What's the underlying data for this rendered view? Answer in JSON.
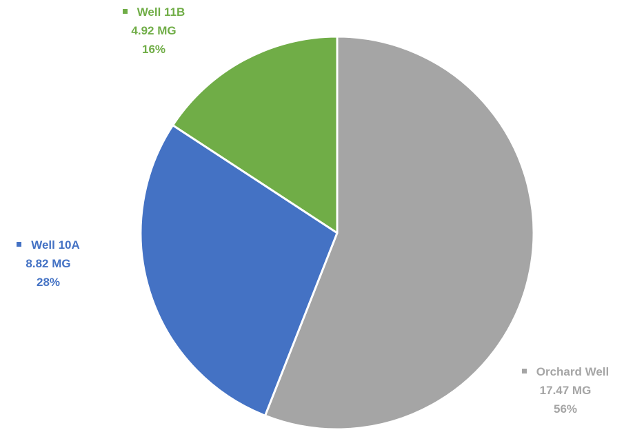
{
  "chart_data": {
    "type": "pie",
    "title": "",
    "start_angle_deg": 0,
    "direction": "clockwise",
    "slices": [
      {
        "name": "Orchard Well",
        "value_label": "17.47 MG",
        "value": 17.47,
        "percent_label": "56%",
        "percent": 56,
        "color": "#a5a5a5"
      },
      {
        "name": "Well 10A",
        "value_label": "8.82 MG",
        "value": 8.82,
        "percent_label": "28%",
        "percent": 28,
        "color": "#4472c4"
      },
      {
        "name": "Well 11B",
        "value_label": "4.92 MG",
        "value": 4.92,
        "percent_label": "16%",
        "percent": 16,
        "color": "#70ad47"
      }
    ],
    "slice_border_color": "#ffffff"
  }
}
